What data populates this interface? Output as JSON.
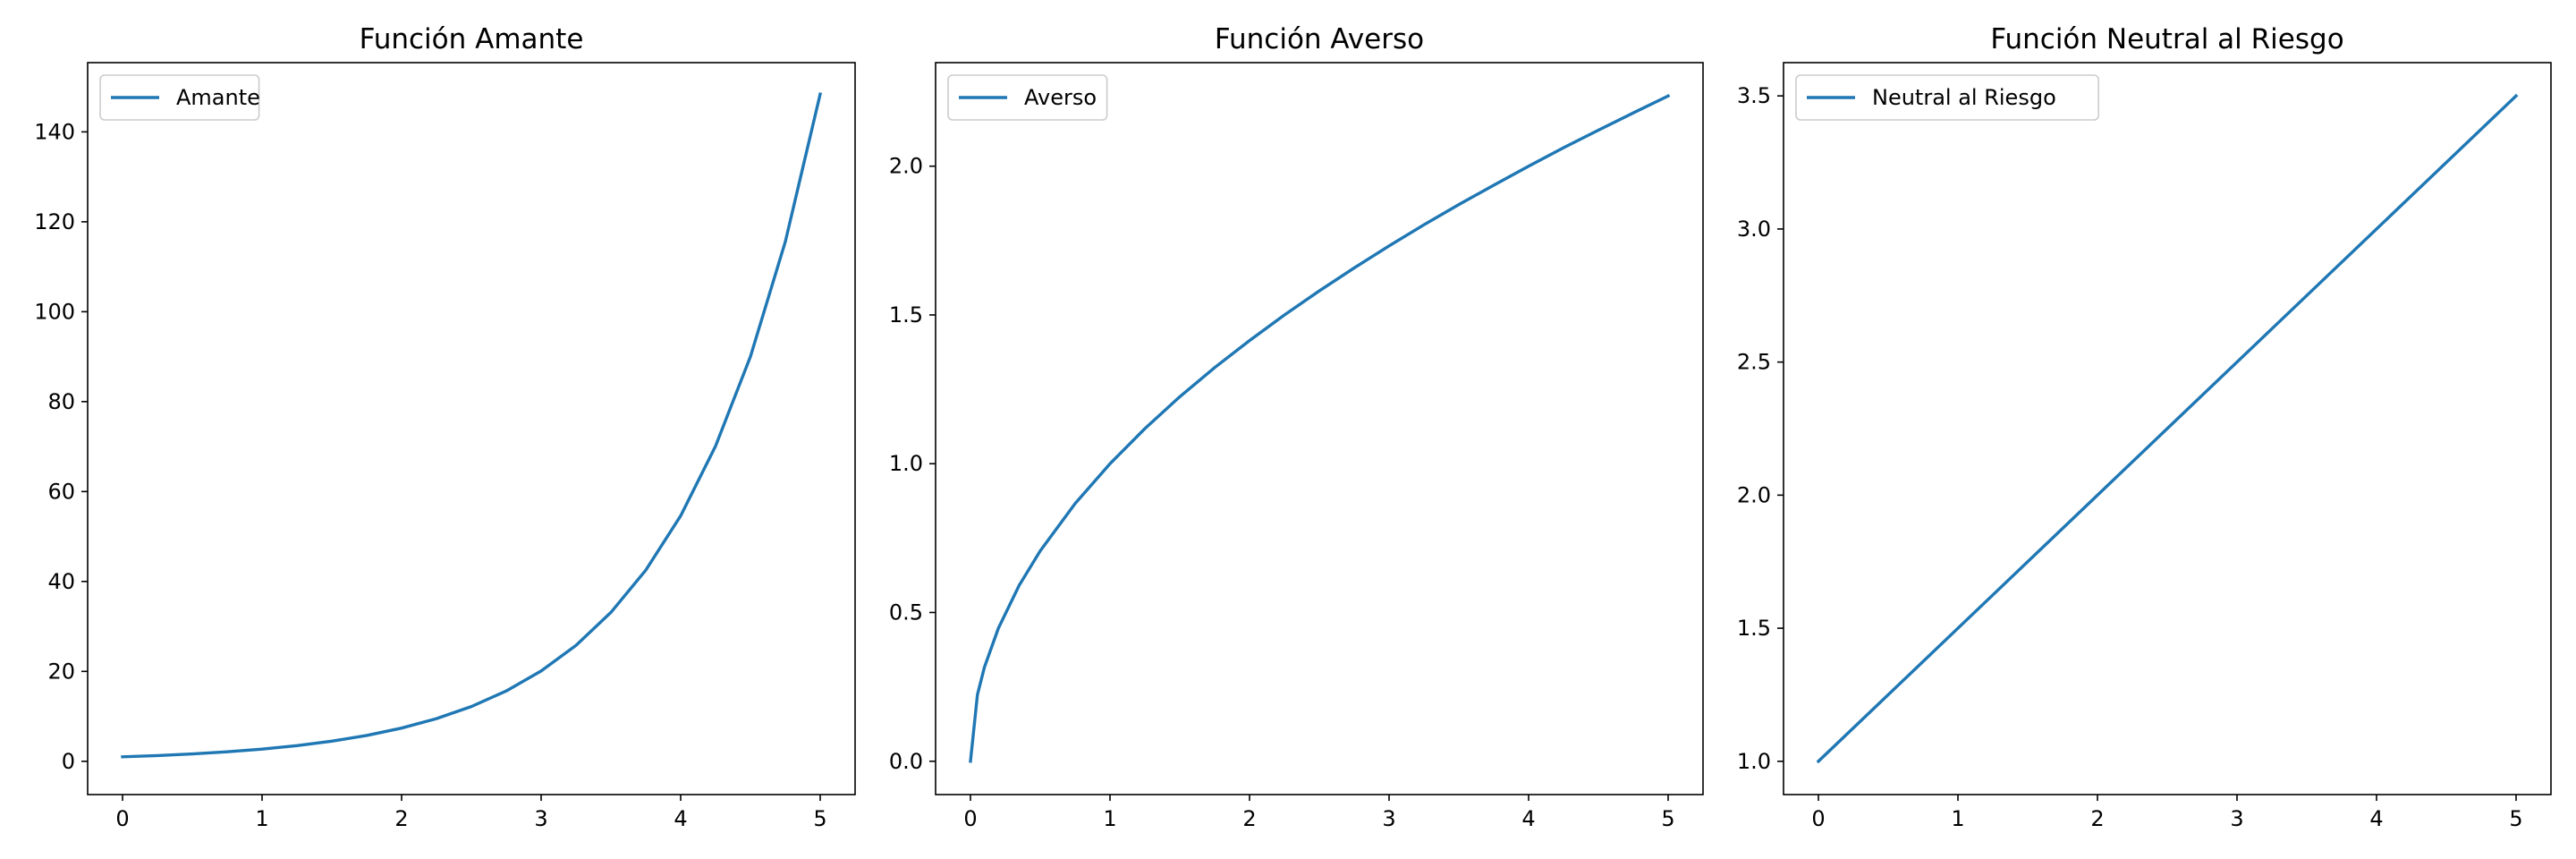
{
  "figure": {
    "background": "#ffffff",
    "line_color": "#1f77b4"
  },
  "chart_data": [
    {
      "type": "line",
      "title": "Función Amante",
      "xlabel": "",
      "ylabel": "",
      "xlim": [
        -0.25,
        5.25
      ],
      "ylim": [
        -7.4,
        155.4
      ],
      "xticks": [
        0,
        1,
        2,
        3,
        4,
        5
      ],
      "xtick_labels": [
        "0",
        "1",
        "2",
        "3",
        "4",
        "5"
      ],
      "yticks": [
        0,
        20,
        40,
        60,
        80,
        100,
        120,
        140
      ],
      "ytick_labels": [
        "0",
        "20",
        "40",
        "60",
        "80",
        "100",
        "120",
        "140"
      ],
      "grid": false,
      "legend_position": "upper-left",
      "series": [
        {
          "name": "Amante",
          "color": "#1f77b4",
          "x": [
            0,
            0.25,
            0.5,
            0.75,
            1,
            1.25,
            1.5,
            1.75,
            2,
            2.25,
            2.5,
            2.75,
            3,
            3.25,
            3.5,
            3.75,
            4,
            4.25,
            4.5,
            4.75,
            5
          ],
          "y": [
            1.0,
            1.28,
            1.65,
            2.12,
            2.72,
            3.49,
            4.48,
            5.75,
            7.39,
            9.49,
            12.18,
            15.64,
            20.09,
            25.79,
            33.12,
            42.52,
            54.6,
            70.11,
            90.02,
            115.58,
            148.41
          ]
        }
      ]
    },
    {
      "type": "line",
      "title": "Función Averso",
      "xlabel": "",
      "ylabel": "",
      "xlim": [
        -0.25,
        5.25
      ],
      "ylim": [
        -0.112,
        2.348
      ],
      "xticks": [
        0,
        1,
        2,
        3,
        4,
        5
      ],
      "xtick_labels": [
        "0",
        "1",
        "2",
        "3",
        "4",
        "5"
      ],
      "yticks": [
        0.0,
        0.5,
        1.0,
        1.5,
        2.0
      ],
      "ytick_labels": [
        "0.0",
        "0.5",
        "1.0",
        "1.5",
        "2.0"
      ],
      "grid": false,
      "legend_position": "upper-left",
      "series": [
        {
          "name": "Averso",
          "color": "#1f77b4",
          "x": [
            0,
            0.05,
            0.1,
            0.2,
            0.35,
            0.5,
            0.75,
            1,
            1.25,
            1.5,
            1.75,
            2,
            2.25,
            2.5,
            2.75,
            3,
            3.25,
            3.5,
            3.75,
            4,
            4.25,
            4.5,
            4.75,
            5
          ],
          "y": [
            0.0,
            0.224,
            0.316,
            0.447,
            0.592,
            0.707,
            0.866,
            1.0,
            1.118,
            1.225,
            1.323,
            1.414,
            1.5,
            1.581,
            1.658,
            1.732,
            1.803,
            1.871,
            1.936,
            2.0,
            2.062,
            2.121,
            2.179,
            2.236
          ]
        }
      ]
    },
    {
      "type": "line",
      "title": "Función Neutral al Riesgo",
      "xlabel": "",
      "ylabel": "",
      "xlim": [
        -0.25,
        5.25
      ],
      "ylim": [
        0.875,
        3.625
      ],
      "xticks": [
        0,
        1,
        2,
        3,
        4,
        5
      ],
      "xtick_labels": [
        "0",
        "1",
        "2",
        "3",
        "4",
        "5"
      ],
      "yticks": [
        1.0,
        1.5,
        2.0,
        2.5,
        3.0,
        3.5
      ],
      "ytick_labels": [
        "1.0",
        "1.5",
        "2.0",
        "2.5",
        "3.0",
        "3.5"
      ],
      "grid": false,
      "legend_position": "upper-left",
      "series": [
        {
          "name": "Neutral al Riesgo",
          "color": "#1f77b4",
          "x": [
            0,
            5
          ],
          "y": [
            1.0,
            3.5
          ]
        }
      ]
    }
  ]
}
